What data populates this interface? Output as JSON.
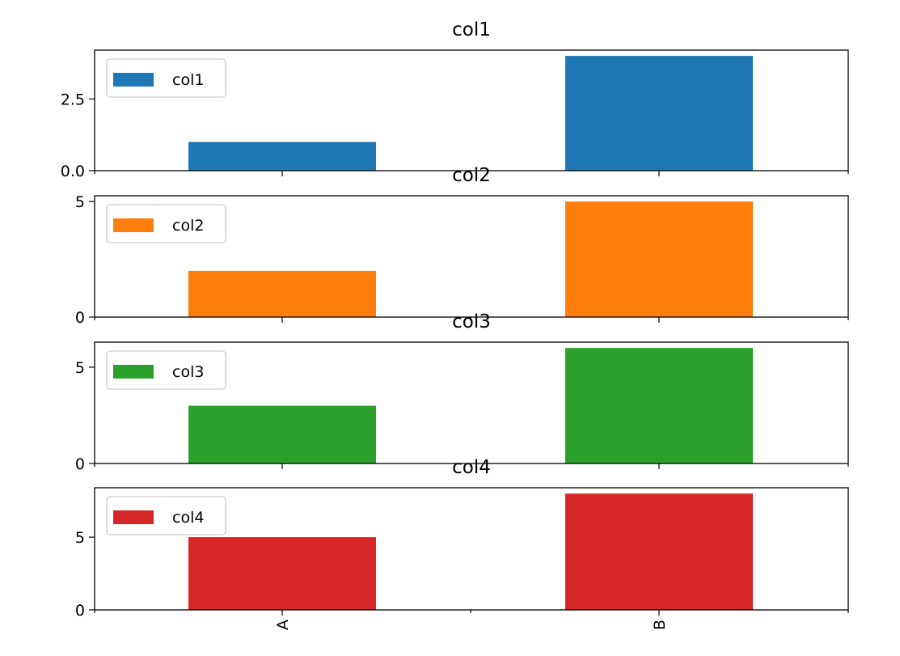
{
  "chart_data": [
    {
      "type": "bar",
      "title": "col1",
      "categories": [
        "A",
        "B"
      ],
      "series": [
        {
          "name": "col1",
          "values": [
            1,
            4
          ],
          "color": "#1f77b4"
        }
      ],
      "ylim": [
        0,
        4.2
      ],
      "yticks": [
        0,
        2.5
      ],
      "ytick_labels": [
        "0.0",
        "2.5"
      ],
      "legend": "upper-left",
      "grid": false
    },
    {
      "type": "bar",
      "title": "col2",
      "categories": [
        "A",
        "B"
      ],
      "series": [
        {
          "name": "col2",
          "values": [
            2,
            5
          ],
          "color": "#ff7f0e"
        }
      ],
      "ylim": [
        0,
        5.25
      ],
      "yticks": [
        0,
        5
      ],
      "ytick_labels": [
        "0",
        "5"
      ],
      "legend": "upper-left",
      "grid": false
    },
    {
      "type": "bar",
      "title": "col3",
      "categories": [
        "A",
        "B"
      ],
      "series": [
        {
          "name": "col3",
          "values": [
            3,
            6
          ],
          "color": "#2ca02c"
        }
      ],
      "ylim": [
        0,
        6.3
      ],
      "yticks": [
        0,
        5
      ],
      "ytick_labels": [
        "0",
        "5"
      ],
      "legend": "upper-left",
      "grid": false
    },
    {
      "type": "bar",
      "title": "col4",
      "categories": [
        "A",
        "B"
      ],
      "series": [
        {
          "name": "col4",
          "values": [
            5,
            8
          ],
          "color": "#d62728"
        }
      ],
      "ylim": [
        0,
        8.4
      ],
      "yticks": [
        0,
        5
      ],
      "ytick_labels": [
        "0",
        "5"
      ],
      "legend": "upper-left",
      "grid": false,
      "xtick_labels_rotated": true
    }
  ]
}
